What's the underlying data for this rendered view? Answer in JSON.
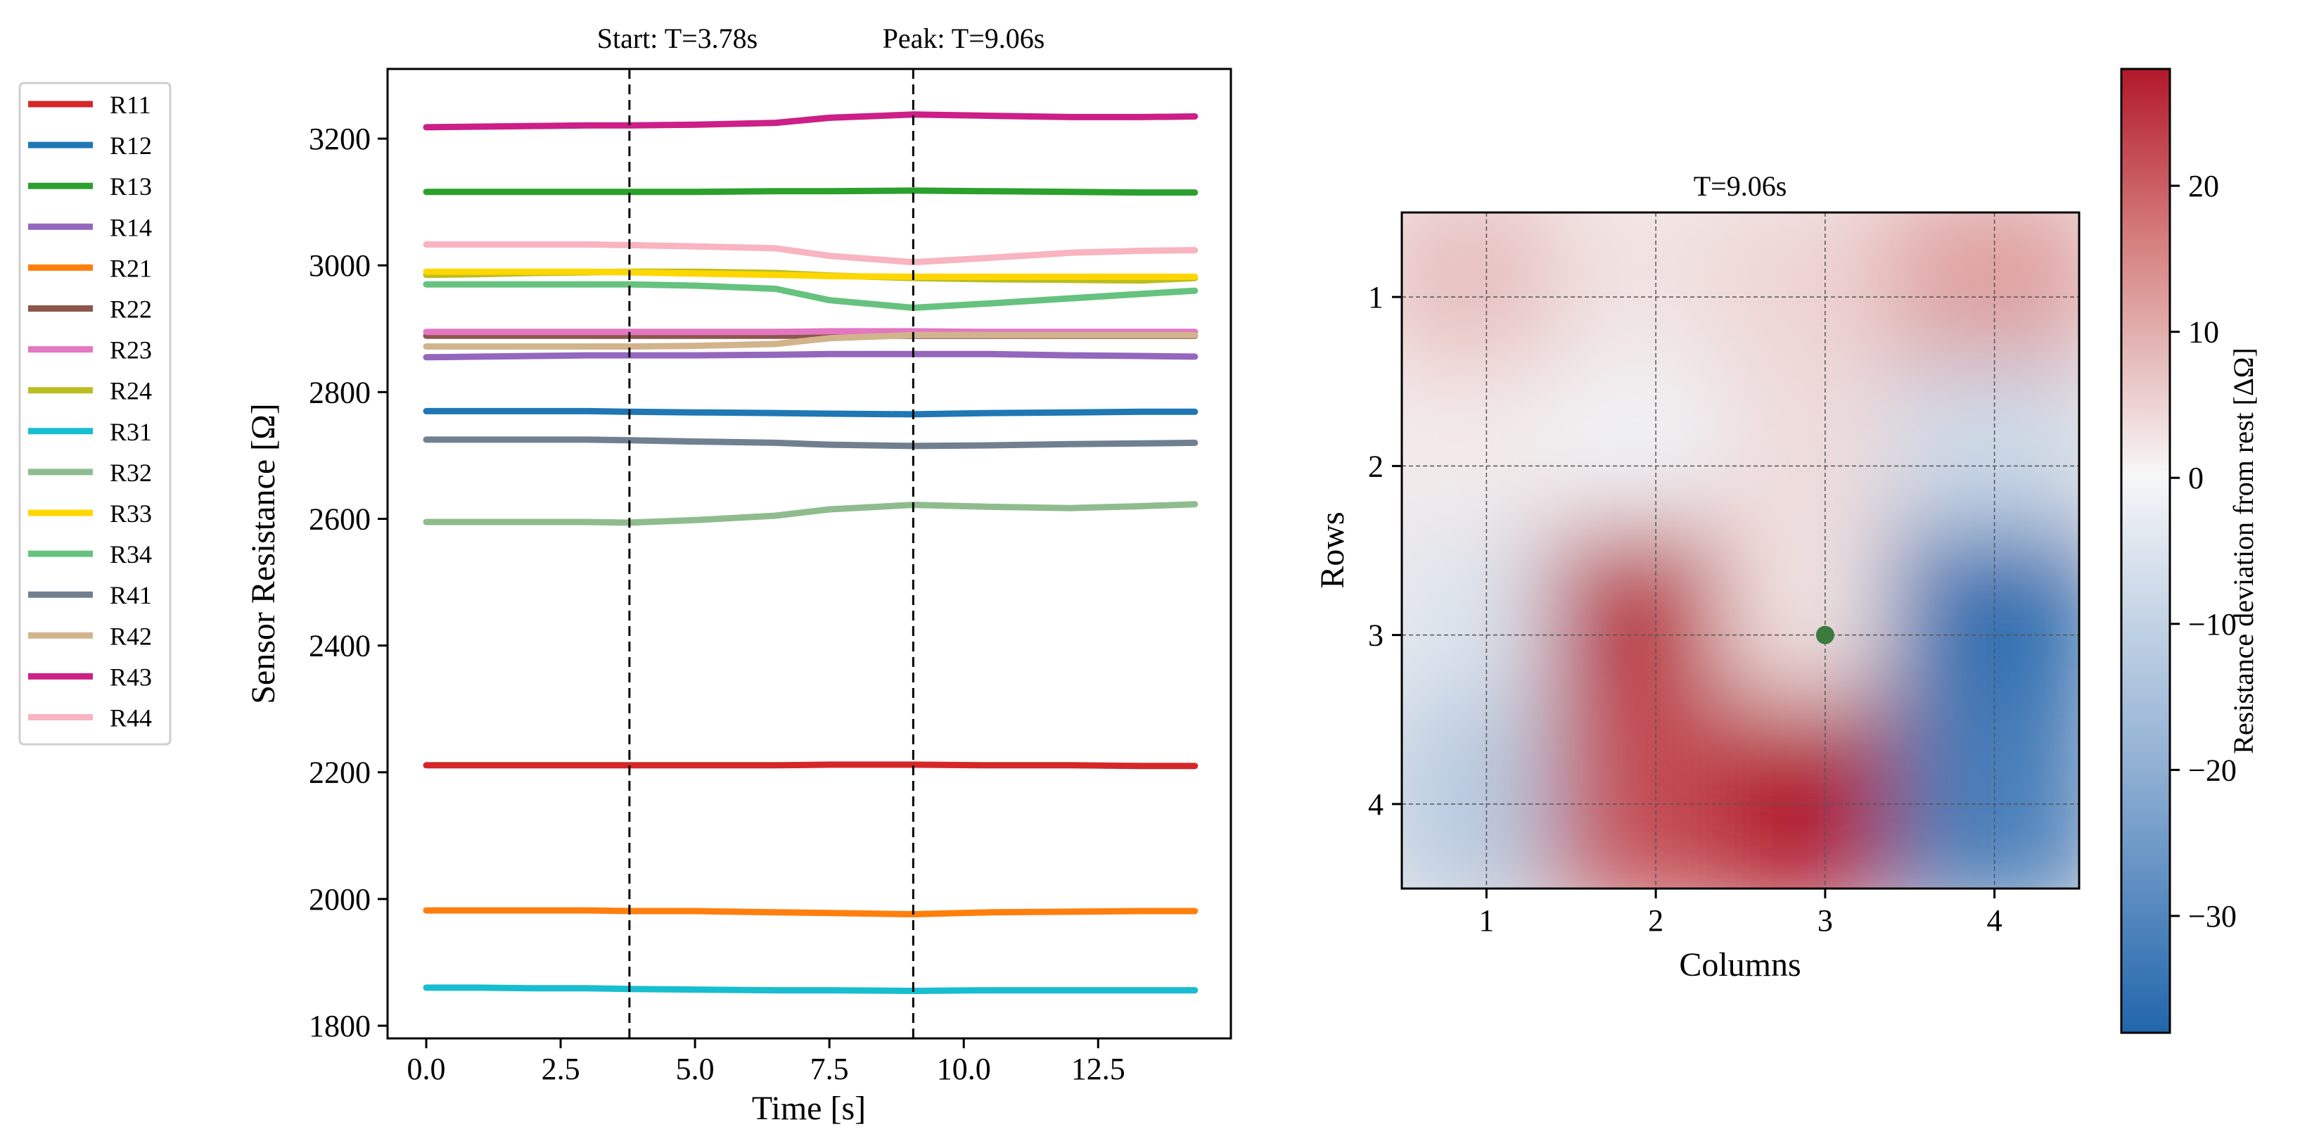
{
  "chart_data": [
    {
      "type": "line",
      "title": "",
      "xlabel": "Time [s]",
      "ylabel": "Sensor Resistance [Ω]",
      "xlim": [
        -0.72,
        14.97
      ],
      "ylim": [
        1780,
        3310
      ],
      "x_ticks": [
        0.0,
        2.5,
        5.0,
        7.5,
        10.0,
        12.5
      ],
      "x_tick_labels": [
        "0.0",
        "2.5",
        "5.0",
        "7.5",
        "10.0",
        "12.5"
      ],
      "y_ticks": [
        1800,
        2000,
        2200,
        2400,
        2600,
        2800,
        3000,
        3200
      ],
      "y_tick_labels": [
        "1800",
        "2000",
        "2200",
        "2400",
        "2600",
        "2800",
        "3000",
        "3200"
      ],
      "grid": false,
      "legend_position": "outside-left",
      "x": [
        0,
        1,
        2,
        3,
        3.78,
        5,
        6.5,
        7.5,
        9.06,
        10.5,
        12,
        13.3,
        14.3
      ],
      "vlines": [
        {
          "x": 3.78,
          "label": "Start: T=3.78s",
          "style": "dashed"
        },
        {
          "x": 9.06,
          "label": "Peak: T=9.06s",
          "style": "dashed"
        }
      ],
      "series": [
        {
          "name": "R11",
          "color": "#d62728",
          "values": [
            2211,
            2211,
            2211,
            2211,
            2211,
            2211,
            2211,
            2212,
            2212,
            2211,
            2211,
            2210,
            2210
          ]
        },
        {
          "name": "R12",
          "color": "#1f77b4",
          "values": [
            2770,
            2770,
            2770,
            2770,
            2769,
            2768,
            2767,
            2766,
            2765,
            2767,
            2768,
            2769,
            2769
          ]
        },
        {
          "name": "R13",
          "color": "#2ca02c",
          "values": [
            3116,
            3116,
            3116,
            3116,
            3116,
            3116,
            3117,
            3117,
            3118,
            3117,
            3116,
            3115,
            3115
          ]
        },
        {
          "name": "R14",
          "color": "#9467bd",
          "values": [
            2855,
            2856,
            2857,
            2858,
            2858,
            2858,
            2859,
            2860,
            2860,
            2860,
            2858,
            2857,
            2856
          ]
        },
        {
          "name": "R21",
          "color": "#ff7f0e",
          "values": [
            1982,
            1982,
            1982,
            1982,
            1981,
            1981,
            1979,
            1978,
            1976,
            1979,
            1980,
            1981,
            1981
          ]
        },
        {
          "name": "R22",
          "color": "#8c564b",
          "values": [
            2889,
            2889,
            2889,
            2889,
            2889,
            2889,
            2889,
            2889,
            2889,
            2889,
            2889,
            2889,
            2889
          ]
        },
        {
          "name": "R23",
          "color": "#e377c2",
          "values": [
            2895,
            2895,
            2895,
            2895,
            2895,
            2895,
            2895,
            2896,
            2896,
            2895,
            2895,
            2895,
            2895
          ]
        },
        {
          "name": "R24",
          "color": "#bcbd22",
          "values": [
            2985,
            2986,
            2988,
            2989,
            2990,
            2990,
            2988,
            2984,
            2980,
            2978,
            2977,
            2976,
            2980
          ]
        },
        {
          "name": "R31",
          "color": "#17becf",
          "values": [
            1860,
            1860,
            1859,
            1859,
            1858,
            1857,
            1856,
            1856,
            1855,
            1856,
            1856,
            1856,
            1856
          ]
        },
        {
          "name": "R32",
          "color": "#8fbc8f",
          "values": [
            2595,
            2595,
            2595,
            2595,
            2594,
            2598,
            2605,
            2615,
            2622,
            2619,
            2617,
            2620,
            2623
          ]
        },
        {
          "name": "R33",
          "color": "#ffd700",
          "values": [
            2990,
            2990,
            2990,
            2990,
            2989,
            2987,
            2985,
            2983,
            2982,
            2982,
            2982,
            2982,
            2982
          ]
        },
        {
          "name": "R34",
          "color": "#66c27f",
          "values": [
            2970,
            2970,
            2970,
            2970,
            2970,
            2968,
            2963,
            2945,
            2933,
            2940,
            2948,
            2955,
            2960
          ]
        },
        {
          "name": "R41",
          "color": "#708090",
          "values": [
            2725,
            2725,
            2725,
            2725,
            2724,
            2722,
            2720,
            2717,
            2715,
            2716,
            2718,
            2719,
            2720
          ]
        },
        {
          "name": "R42",
          "color": "#d2b48c",
          "values": [
            2872,
            2872,
            2872,
            2872,
            2872,
            2873,
            2876,
            2885,
            2890,
            2890,
            2890,
            2890,
            2890
          ]
        },
        {
          "name": "R43",
          "color": "#cc1f87",
          "values": [
            3218,
            3219,
            3220,
            3221,
            3221,
            3222,
            3225,
            3233,
            3238,
            3236,
            3234,
            3234,
            3235
          ]
        },
        {
          "name": "R44",
          "color": "#f8b4c0",
          "values": [
            3033,
            3033,
            3033,
            3033,
            3032,
            3030,
            3027,
            3015,
            3005,
            3012,
            3020,
            3023,
            3024
          ]
        }
      ]
    },
    {
      "type": "heatmap",
      "title": "T=9.06s",
      "xlabel": "Columns",
      "ylabel": "Rows",
      "xlim": [
        0.5,
        4.5
      ],
      "ylim": [
        4.5,
        0.5
      ],
      "x_ticks": [
        1,
        2,
        3,
        4
      ],
      "y_ticks": [
        1,
        2,
        3,
        4
      ],
      "x_tick_labels": [
        "1",
        "2",
        "3",
        "4"
      ],
      "y_tick_labels": [
        "1",
        "2",
        "3",
        "4"
      ],
      "grid": true,
      "rows": [
        1,
        2,
        3,
        4
      ],
      "columns": [
        1,
        2,
        3,
        4
      ],
      "values": [
        [
          8,
          3,
          5,
          12
        ],
        [
          2,
          -1,
          4,
          -8
        ],
        [
          -5,
          26,
          3,
          -36
        ],
        [
          -12,
          22,
          28,
          -32
        ]
      ],
      "highlight_point": {
        "column": 3,
        "row": 3
      },
      "colorbar": {
        "label": "Resistance deviation from rest [ΔΩ]",
        "min": -38,
        "max": 28,
        "ticks": [
          20,
          10,
          0,
          -10,
          -20,
          -30
        ],
        "tick_labels": [
          "20",
          "10",
          "0",
          "−10",
          "−20",
          "−30"
        ]
      }
    }
  ]
}
